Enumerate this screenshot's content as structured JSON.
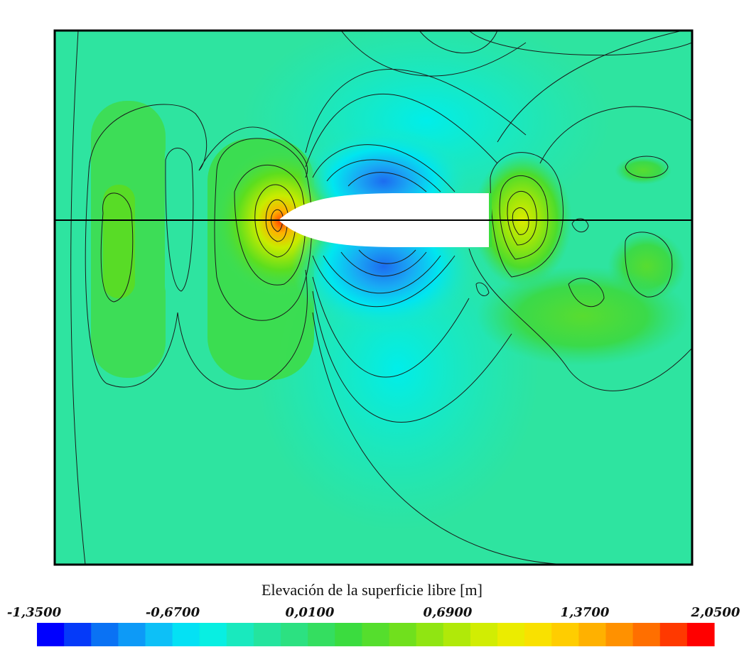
{
  "chart_data": {
    "type": "heatmap",
    "subtype": "filled contour plot of free-surface elevation around a ship hull (plan view, mirrored about centerline)",
    "colorbar": {
      "title": "Elevación de la superficie libre [m]",
      "tick_labels": [
        "-1,3500",
        "-0,6700",
        "0,0100",
        "0,6900",
        "1,3700",
        "2,0500"
      ],
      "tick_values": [
        -1.35,
        -0.67,
        0.01,
        0.69,
        1.37,
        2.05
      ],
      "range": [
        -1.35,
        2.05
      ],
      "n_levels": 25,
      "colormap": [
        "#0000ff",
        "#0a6cf4",
        "#0fb6f8",
        "#00f2f2",
        "#1fe6b0",
        "#2ee07a",
        "#3cdc3c",
        "#6ee01e",
        "#a8e80a",
        "#e6f000",
        "#ffdc00",
        "#ffa800",
        "#ff6a00",
        "#ff0000"
      ],
      "placement": "bottom"
    },
    "background_level": 0.0,
    "features": [
      {
        "name": "bow pressure peak",
        "value": 1.5
      },
      {
        "name": "hull shoulder trough (upper)",
        "value": -1.2
      },
      {
        "name": "hull shoulder trough (lower)",
        "value": -1.0
      },
      {
        "name": "stern wave crest",
        "value": 1.1
      },
      {
        "name": "wake crest",
        "value": 0.6
      },
      {
        "name": "upstream bow wave bands",
        "value": 0.3
      }
    ],
    "centerline": true,
    "grid": false
  },
  "colors": {
    "background_field": "#2ee4a0",
    "hull": "#ffffff",
    "contour_line": "#1a1a1a",
    "frame": "#000000"
  }
}
